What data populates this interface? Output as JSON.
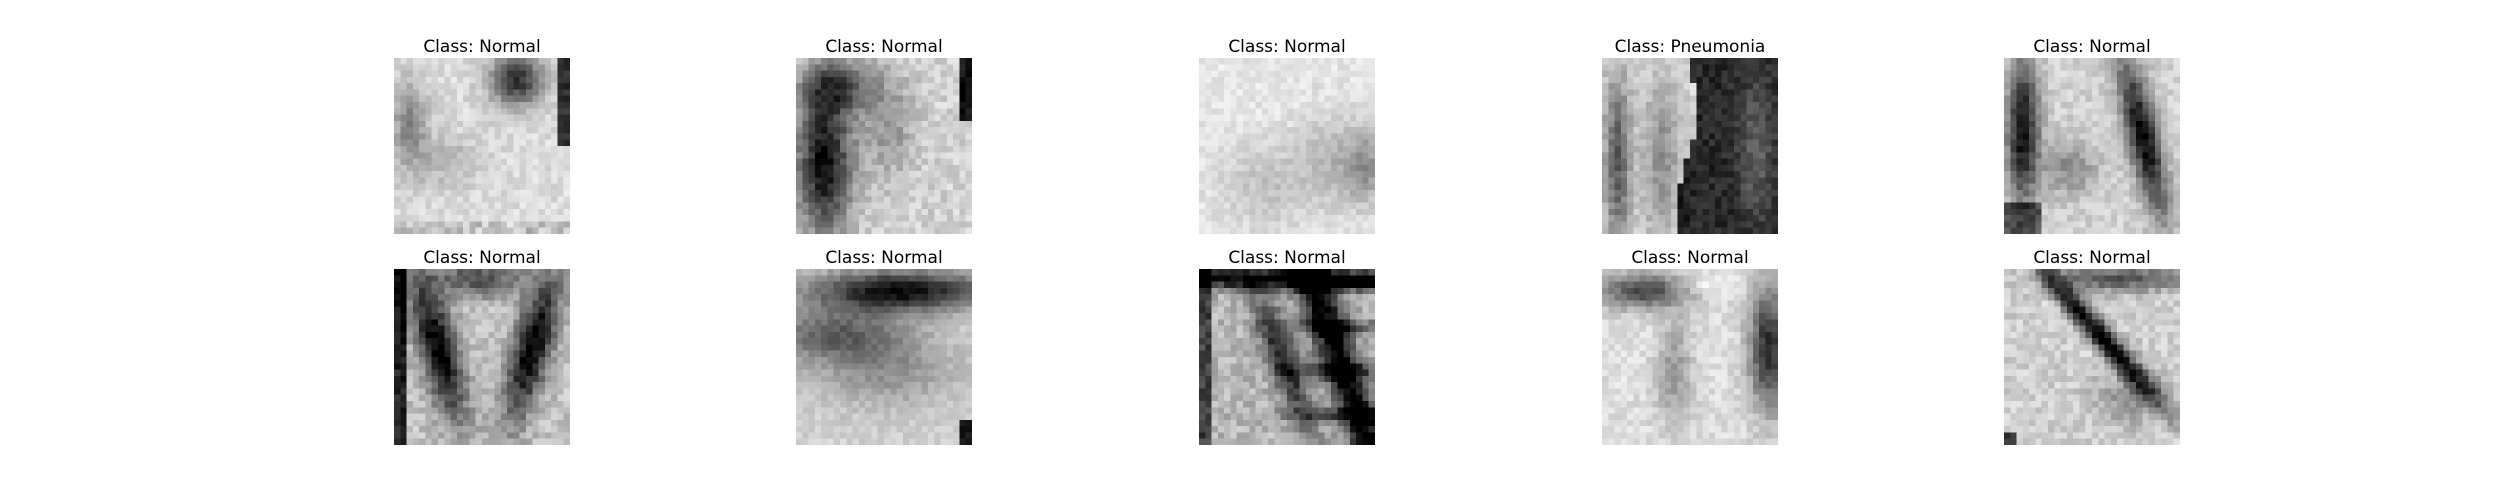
{
  "figure": {
    "panels": [
      {
        "title": "Class: Normal",
        "label": "Normal",
        "pattern": "white-chest-dark-top-right"
      },
      {
        "title": "Class: Normal",
        "label": "Normal",
        "pattern": "dark-left-lung"
      },
      {
        "title": "Class: Normal",
        "label": "Normal",
        "pattern": "very-light-faint"
      },
      {
        "title": "Class: Pneumonia",
        "label": "Pneumonia",
        "pattern": "dark-right-half"
      },
      {
        "title": "Class: Normal",
        "label": "Normal",
        "pattern": "two-dark-stripes"
      },
      {
        "title": "Class: Normal",
        "label": "Normal",
        "pattern": "dark-lungs-bright-spine"
      },
      {
        "title": "Class: Normal",
        "label": "Normal",
        "pattern": "dark-top-band"
      },
      {
        "title": "Class: Normal",
        "label": "Normal",
        "pattern": "dark-diagonal-ribs"
      },
      {
        "title": "Class: Normal",
        "label": "Normal",
        "pattern": "light-dark-right-edge"
      },
      {
        "title": "Class: Normal",
        "label": "Normal",
        "pattern": "diagonal-dark-stripe"
      }
    ]
  },
  "colors": {
    "background": "#ffffff",
    "text": "#000000",
    "image_low": "#000000",
    "image_high": "#ffffff"
  }
}
